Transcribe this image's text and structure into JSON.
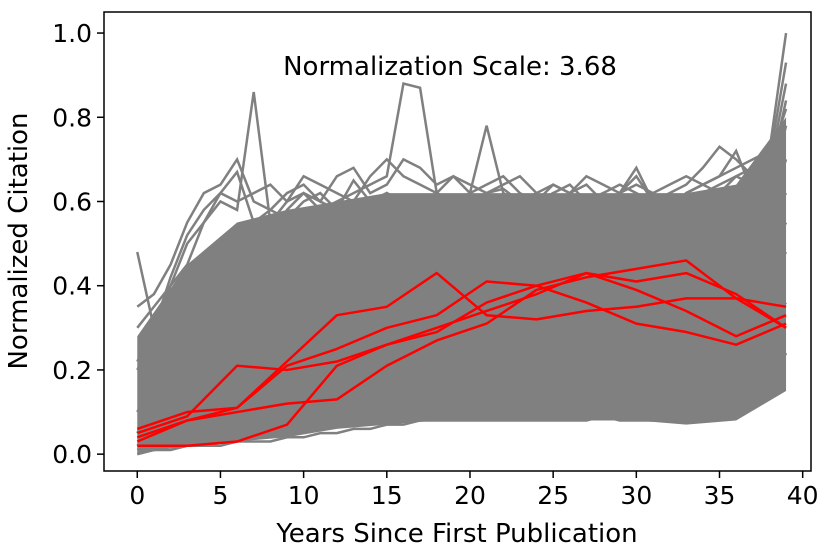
{
  "chart_data": {
    "type": "line",
    "title": "",
    "annotation": "Normalization Scale: 3.68",
    "xlabel": "Years Since First Publication",
    "ylabel": "Normalized Citation",
    "xlim": [
      -2,
      40.5
    ],
    "ylim": [
      -0.04,
      1.05
    ],
    "x_ticks": [
      0,
      5,
      10,
      15,
      20,
      25,
      30,
      35,
      40
    ],
    "x_tick_labels": [
      "0",
      "5",
      "10",
      "15",
      "20",
      "25",
      "30",
      "35",
      "40"
    ],
    "y_ticks": [
      0.0,
      0.2,
      0.4,
      0.6,
      0.8,
      1.0
    ],
    "y_tick_labels": [
      "0.0",
      "0.2",
      "0.4",
      "0.6",
      "0.8",
      "1.0"
    ],
    "grid": false,
    "legend": "none",
    "colors": {
      "background_series": "#808080",
      "highlight_series": "#ff0000",
      "axes": "#000000"
    },
    "background_band": {
      "description_counts": "many gray trajectories (sampled)",
      "x": [
        0,
        3,
        6,
        9,
        12,
        15,
        18,
        21,
        24,
        27,
        30,
        33,
        36,
        39
      ],
      "upper": [
        0.28,
        0.45,
        0.55,
        0.58,
        0.6,
        0.62,
        0.62,
        0.62,
        0.62,
        0.62,
        0.62,
        0.62,
        0.64,
        0.8
      ],
      "lower": [
        0.0,
        0.02,
        0.03,
        0.04,
        0.06,
        0.07,
        0.08,
        0.08,
        0.08,
        0.08,
        0.08,
        0.07,
        0.08,
        0.15
      ]
    },
    "series_background": [
      {
        "x": [
          0,
          1,
          2,
          3,
          4,
          5,
          6,
          7,
          8,
          9,
          10,
          11,
          12,
          13,
          14,
          15,
          16,
          17,
          18,
          19,
          20,
          21,
          22,
          23,
          24,
          25,
          26,
          27,
          28,
          29,
          30,
          31,
          32,
          33,
          34,
          35,
          36,
          37,
          38,
          39
        ],
        "values": [
          0.48,
          0.3,
          0.4,
          0.45,
          0.55,
          0.62,
          0.67,
          0.55,
          0.5,
          0.58,
          0.62,
          0.6,
          0.58,
          0.65,
          0.6,
          0.62,
          0.6,
          0.58,
          0.62,
          0.6,
          0.58,
          0.62,
          0.63,
          0.6,
          0.58,
          0.62,
          0.64,
          0.6,
          0.58,
          0.62,
          0.66,
          0.6,
          0.58,
          0.62,
          0.64,
          0.66,
          0.68,
          0.7,
          0.72,
          1.0
        ]
      },
      {
        "x": [
          0,
          1,
          2,
          3,
          4,
          5,
          6,
          7,
          8,
          9,
          10,
          11,
          12,
          13,
          14,
          15,
          16,
          17,
          18,
          19,
          20,
          21,
          22,
          23,
          24,
          25,
          26,
          27,
          28,
          29,
          30,
          31,
          32,
          33,
          34,
          35,
          36,
          37,
          38,
          39
        ],
        "values": [
          0.3,
          0.35,
          0.4,
          0.5,
          0.55,
          0.6,
          0.58,
          0.86,
          0.55,
          0.6,
          0.62,
          0.58,
          0.6,
          0.62,
          0.64,
          0.66,
          0.88,
          0.87,
          0.62,
          0.6,
          0.62,
          0.78,
          0.62,
          0.6,
          0.62,
          0.58,
          0.62,
          0.64,
          0.6,
          0.62,
          0.68,
          0.6,
          0.58,
          0.62,
          0.64,
          0.66,
          0.72,
          0.62,
          0.7,
          0.93
        ]
      },
      {
        "x": [
          0,
          1,
          2,
          3,
          4,
          5,
          6,
          7,
          8,
          9,
          10,
          11,
          12,
          13,
          14,
          15,
          16,
          17,
          18,
          19,
          20,
          21,
          22,
          23,
          24,
          25,
          26,
          27,
          28,
          29,
          30,
          31,
          32,
          33,
          34,
          35,
          36,
          37,
          38,
          39
        ],
        "values": [
          0.35,
          0.38,
          0.45,
          0.55,
          0.62,
          0.64,
          0.7,
          0.6,
          0.58,
          0.62,
          0.64,
          0.6,
          0.66,
          0.68,
          0.62,
          0.64,
          0.7,
          0.68,
          0.64,
          0.66,
          0.62,
          0.64,
          0.66,
          0.62,
          0.6,
          0.64,
          0.62,
          0.6,
          0.62,
          0.64,
          0.62,
          0.6,
          0.62,
          0.64,
          0.68,
          0.73,
          0.7,
          0.66,
          0.68,
          0.88
        ]
      },
      {
        "x": [
          0,
          1,
          2,
          3,
          4,
          5,
          6,
          7,
          8,
          9,
          10,
          11,
          12,
          13,
          14,
          15,
          16,
          17,
          18,
          19,
          20,
          21,
          22,
          23,
          24,
          25,
          26,
          27,
          28,
          29,
          30,
          31,
          32,
          33,
          34,
          35,
          36,
          37,
          38,
          39
        ],
        "values": [
          0.2,
          0.28,
          0.35,
          0.4,
          0.45,
          0.5,
          0.52,
          0.55,
          0.58,
          0.56,
          0.6,
          0.62,
          0.58,
          0.56,
          0.6,
          0.62,
          0.58,
          0.6,
          0.62,
          0.58,
          0.6,
          0.62,
          0.58,
          0.56,
          0.6,
          0.62,
          0.58,
          0.6,
          0.62,
          0.58,
          0.6,
          0.62,
          0.58,
          0.6,
          0.62,
          0.64,
          0.66,
          0.64,
          0.66,
          0.84
        ]
      },
      {
        "x": [
          0,
          1,
          2,
          3,
          4,
          5,
          6,
          7,
          8,
          9,
          10,
          11,
          12,
          13,
          14,
          15,
          16,
          17,
          18,
          19,
          20,
          21,
          22,
          23,
          24,
          25,
          26,
          27,
          28,
          29,
          30,
          31,
          32,
          33,
          34,
          35,
          36,
          37,
          38,
          39
        ],
        "values": [
          0.1,
          0.18,
          0.25,
          0.32,
          0.38,
          0.42,
          0.45,
          0.48,
          0.5,
          0.52,
          0.54,
          0.52,
          0.5,
          0.52,
          0.54,
          0.56,
          0.54,
          0.52,
          0.54,
          0.56,
          0.54,
          0.52,
          0.54,
          0.56,
          0.54,
          0.52,
          0.54,
          0.56,
          0.54,
          0.52,
          0.54,
          0.56,
          0.54,
          0.52,
          0.54,
          0.56,
          0.58,
          0.6,
          0.62,
          0.78
        ]
      },
      {
        "x": [
          0,
          1,
          2,
          3,
          4,
          5,
          6,
          7,
          8,
          9,
          10,
          11,
          12,
          13,
          14,
          15,
          16,
          17,
          18,
          19,
          20,
          21,
          22,
          23,
          24,
          25,
          26,
          27,
          28,
          29,
          30,
          31,
          32,
          33,
          34,
          35,
          36,
          37,
          38,
          39
        ],
        "values": [
          0.05,
          0.12,
          0.18,
          0.25,
          0.3,
          0.34,
          0.38,
          0.4,
          0.42,
          0.44,
          0.46,
          0.48,
          0.46,
          0.44,
          0.46,
          0.48,
          0.5,
          0.48,
          0.46,
          0.48,
          0.5,
          0.48,
          0.46,
          0.48,
          0.5,
          0.48,
          0.46,
          0.48,
          0.5,
          0.48,
          0.46,
          0.48,
          0.5,
          0.48,
          0.5,
          0.52,
          0.54,
          0.56,
          0.58,
          0.7
        ]
      },
      {
        "x": [
          0,
          1,
          2,
          3,
          4,
          5,
          6,
          7,
          8,
          9,
          10,
          11,
          12,
          13,
          14,
          15,
          16,
          17,
          18,
          19,
          20,
          21,
          22,
          23,
          24,
          25,
          26,
          27,
          28,
          29,
          30,
          31,
          32,
          33,
          34,
          35,
          36,
          37,
          38,
          39
        ],
        "values": [
          0.02,
          0.06,
          0.1,
          0.14,
          0.18,
          0.22,
          0.25,
          0.28,
          0.3,
          0.32,
          0.34,
          0.36,
          0.38,
          0.4,
          0.42,
          0.4,
          0.38,
          0.4,
          0.42,
          0.44,
          0.42,
          0.4,
          0.42,
          0.44,
          0.42,
          0.4,
          0.42,
          0.44,
          0.42,
          0.4,
          0.42,
          0.44,
          0.42,
          0.44,
          0.46,
          0.48,
          0.5,
          0.52,
          0.56,
          0.62
        ]
      },
      {
        "x": [
          0,
          1,
          2,
          3,
          4,
          5,
          6,
          7,
          8,
          9,
          10,
          11,
          12,
          13,
          14,
          15,
          16,
          17,
          18,
          19,
          20,
          21,
          22,
          23,
          24,
          25,
          26,
          27,
          28,
          29,
          30,
          31,
          32,
          33,
          34,
          35,
          36,
          37,
          38,
          39
        ],
        "values": [
          0.01,
          0.03,
          0.05,
          0.07,
          0.09,
          0.11,
          0.13,
          0.15,
          0.17,
          0.19,
          0.21,
          0.23,
          0.25,
          0.27,
          0.29,
          0.31,
          0.33,
          0.35,
          0.37,
          0.36,
          0.35,
          0.36,
          0.37,
          0.38,
          0.36,
          0.35,
          0.36,
          0.37,
          0.38,
          0.36,
          0.35,
          0.36,
          0.37,
          0.38,
          0.4,
          0.42,
          0.44,
          0.46,
          0.48,
          0.55
        ]
      },
      {
        "x": [
          0,
          1,
          2,
          3,
          4,
          5,
          6,
          7,
          8,
          9,
          10,
          11,
          12,
          13,
          14,
          15,
          16,
          17,
          18,
          19,
          20,
          21,
          22,
          23,
          24,
          25,
          26,
          27,
          28,
          29,
          30,
          31,
          32,
          33,
          34,
          35,
          36,
          37,
          38,
          39
        ],
        "values": [
          0.01,
          0.02,
          0.03,
          0.04,
          0.05,
          0.06,
          0.07,
          0.08,
          0.1,
          0.12,
          0.14,
          0.16,
          0.18,
          0.2,
          0.22,
          0.24,
          0.26,
          0.28,
          0.3,
          0.28,
          0.26,
          0.28,
          0.3,
          0.32,
          0.3,
          0.28,
          0.3,
          0.32,
          0.34,
          0.32,
          0.3,
          0.32,
          0.34,
          0.32,
          0.34,
          0.36,
          0.38,
          0.4,
          0.42,
          0.48
        ]
      },
      {
        "x": [
          0,
          1,
          2,
          3,
          4,
          5,
          6,
          7,
          8,
          9,
          10,
          11,
          12,
          13,
          14,
          15,
          16,
          17,
          18,
          19,
          20,
          21,
          22,
          23,
          24,
          25,
          26,
          27,
          28,
          29,
          30,
          31,
          32,
          33,
          34,
          35,
          36,
          37,
          38,
          39
        ],
        "values": [
          0.0,
          0.01,
          0.02,
          0.02,
          0.03,
          0.03,
          0.04,
          0.04,
          0.05,
          0.06,
          0.07,
          0.08,
          0.09,
          0.1,
          0.12,
          0.14,
          0.16,
          0.18,
          0.2,
          0.19,
          0.18,
          0.19,
          0.2,
          0.22,
          0.21,
          0.2,
          0.21,
          0.22,
          0.24,
          0.23,
          0.22,
          0.23,
          0.24,
          0.23,
          0.24,
          0.26,
          0.28,
          0.3,
          0.32,
          0.36
        ]
      },
      {
        "x": [
          0,
          1,
          2,
          3,
          4,
          5,
          6,
          7,
          8,
          9,
          10,
          11,
          12,
          13,
          14,
          15,
          16,
          17,
          18,
          19,
          20,
          21,
          22,
          23,
          24,
          25,
          26,
          27,
          28,
          29,
          30,
          31,
          32,
          33,
          34,
          35,
          36,
          37,
          38,
          39
        ],
        "values": [
          0.0,
          0.01,
          0.01,
          0.02,
          0.02,
          0.02,
          0.03,
          0.03,
          0.03,
          0.04,
          0.04,
          0.05,
          0.05,
          0.06,
          0.06,
          0.07,
          0.07,
          0.08,
          0.08,
          0.08,
          0.08,
          0.08,
          0.08,
          0.08,
          0.08,
          0.08,
          0.08,
          0.08,
          0.09,
          0.08,
          0.08,
          0.08,
          0.09,
          0.08,
          0.09,
          0.1,
          0.12,
          0.14,
          0.16,
          0.24
        ]
      },
      {
        "x": [
          0,
          1,
          2,
          3,
          4,
          5,
          6,
          7,
          8,
          9,
          10,
          11,
          12,
          13,
          14,
          15,
          16,
          17,
          18,
          19,
          20,
          21,
          22,
          23,
          24,
          25,
          26,
          27,
          28,
          29,
          30,
          31,
          32,
          33,
          34,
          35,
          36,
          37,
          38,
          39
        ],
        "values": [
          0.22,
          0.3,
          0.42,
          0.52,
          0.58,
          0.62,
          0.6,
          0.62,
          0.64,
          0.6,
          0.66,
          0.64,
          0.62,
          0.6,
          0.66,
          0.7,
          0.66,
          0.64,
          0.62,
          0.66,
          0.64,
          0.62,
          0.64,
          0.66,
          0.62,
          0.64,
          0.62,
          0.66,
          0.64,
          0.62,
          0.64,
          0.62,
          0.64,
          0.66,
          0.64,
          0.62,
          0.66,
          0.68,
          0.7,
          0.82
        ]
      }
    ],
    "series_highlight": [
      {
        "x": [
          0,
          3,
          6,
          9,
          12,
          15,
          18,
          21,
          24,
          27,
          30,
          33,
          36,
          39
        ],
        "values": [
          0.02,
          0.02,
          0.03,
          0.07,
          0.21,
          0.26,
          0.29,
          0.36,
          0.4,
          0.43,
          0.41,
          0.43,
          0.38,
          0.3
        ]
      },
      {
        "x": [
          0,
          3,
          6,
          9,
          12,
          15,
          18,
          21,
          24,
          27,
          30,
          33,
          36,
          39
        ],
        "values": [
          0.03,
          0.08,
          0.1,
          0.12,
          0.13,
          0.21,
          0.27,
          0.31,
          0.39,
          0.42,
          0.44,
          0.46,
          0.37,
          0.3
        ]
      },
      {
        "x": [
          0,
          3,
          6,
          9,
          12,
          15,
          18,
          21,
          24,
          27,
          30,
          33,
          36,
          39
        ],
        "values": [
          0.04,
          0.08,
          0.11,
          0.22,
          0.33,
          0.35,
          0.43,
          0.33,
          0.32,
          0.34,
          0.35,
          0.37,
          0.37,
          0.35
        ]
      },
      {
        "x": [
          0,
          3,
          6,
          9,
          12,
          15,
          18,
          21,
          24,
          27,
          30,
          33,
          36,
          39
        ],
        "values": [
          0.05,
          0.09,
          0.21,
          0.2,
          0.22,
          0.26,
          0.3,
          0.34,
          0.38,
          0.43,
          0.39,
          0.34,
          0.28,
          0.33
        ]
      },
      {
        "x": [
          0,
          3,
          6,
          9,
          12,
          15,
          18,
          21,
          24,
          27,
          30,
          33,
          36,
          39
        ],
        "values": [
          0.06,
          0.1,
          0.11,
          0.21,
          0.25,
          0.3,
          0.33,
          0.41,
          0.4,
          0.36,
          0.31,
          0.29,
          0.26,
          0.31
        ]
      }
    ]
  }
}
